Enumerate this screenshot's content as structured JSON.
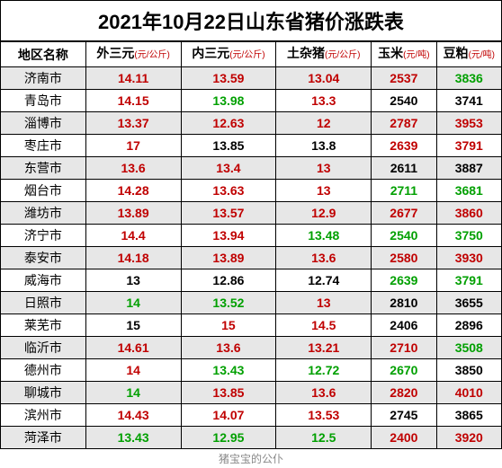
{
  "title": "2021年10月22日山东省猪价涨跌表",
  "footer": "猪宝宝的公仆",
  "colors": {
    "red": "#c00000",
    "green": "#00a000",
    "black": "#000000",
    "odd_row": "#e7e7e7",
    "even_row": "#ffffff"
  },
  "columns": [
    {
      "label": "地区名称",
      "unit": ""
    },
    {
      "label": "外三元",
      "unit": "(元/公斤)"
    },
    {
      "label": "内三元",
      "unit": "(元/公斤)"
    },
    {
      "label": "土杂猪",
      "unit": "(元/公斤)"
    },
    {
      "label": "玉米",
      "unit": "(元/吨)"
    },
    {
      "label": "豆粕",
      "unit": "(元/吨)"
    }
  ],
  "rows": [
    {
      "city": "济南市",
      "cells": [
        {
          "v": "14.11",
          "c": "red"
        },
        {
          "v": "13.59",
          "c": "red"
        },
        {
          "v": "13.04",
          "c": "red"
        },
        {
          "v": "2537",
          "c": "red"
        },
        {
          "v": "3836",
          "c": "green"
        }
      ]
    },
    {
      "city": "青岛市",
      "cells": [
        {
          "v": "14.15",
          "c": "red"
        },
        {
          "v": "13.98",
          "c": "green"
        },
        {
          "v": "13.3",
          "c": "red"
        },
        {
          "v": "2540",
          "c": "black"
        },
        {
          "v": "3741",
          "c": "black"
        }
      ]
    },
    {
      "city": "淄博市",
      "cells": [
        {
          "v": "13.37",
          "c": "red"
        },
        {
          "v": "12.63",
          "c": "red"
        },
        {
          "v": "12",
          "c": "red"
        },
        {
          "v": "2787",
          "c": "red"
        },
        {
          "v": "3953",
          "c": "red"
        }
      ]
    },
    {
      "city": "枣庄市",
      "cells": [
        {
          "v": "17",
          "c": "red"
        },
        {
          "v": "13.85",
          "c": "black"
        },
        {
          "v": "13.8",
          "c": "black"
        },
        {
          "v": "2639",
          "c": "red"
        },
        {
          "v": "3791",
          "c": "red"
        }
      ]
    },
    {
      "city": "东营市",
      "cells": [
        {
          "v": "13.6",
          "c": "red"
        },
        {
          "v": "13.4",
          "c": "red"
        },
        {
          "v": "13",
          "c": "red"
        },
        {
          "v": "2611",
          "c": "black"
        },
        {
          "v": "3887",
          "c": "black"
        }
      ]
    },
    {
      "city": "烟台市",
      "cells": [
        {
          "v": "14.28",
          "c": "red"
        },
        {
          "v": "13.63",
          "c": "red"
        },
        {
          "v": "13",
          "c": "red"
        },
        {
          "v": "2711",
          "c": "green"
        },
        {
          "v": "3681",
          "c": "green"
        }
      ]
    },
    {
      "city": "潍坊市",
      "cells": [
        {
          "v": "13.89",
          "c": "red"
        },
        {
          "v": "13.57",
          "c": "red"
        },
        {
          "v": "12.9",
          "c": "red"
        },
        {
          "v": "2677",
          "c": "red"
        },
        {
          "v": "3860",
          "c": "red"
        }
      ]
    },
    {
      "city": "济宁市",
      "cells": [
        {
          "v": "14.4",
          "c": "red"
        },
        {
          "v": "13.94",
          "c": "red"
        },
        {
          "v": "13.48",
          "c": "green"
        },
        {
          "v": "2540",
          "c": "green"
        },
        {
          "v": "3750",
          "c": "green"
        }
      ]
    },
    {
      "city": "泰安市",
      "cells": [
        {
          "v": "14.18",
          "c": "red"
        },
        {
          "v": "13.89",
          "c": "red"
        },
        {
          "v": "13.6",
          "c": "red"
        },
        {
          "v": "2580",
          "c": "red"
        },
        {
          "v": "3930",
          "c": "red"
        }
      ]
    },
    {
      "city": "威海市",
      "cells": [
        {
          "v": "13",
          "c": "black"
        },
        {
          "v": "12.86",
          "c": "black"
        },
        {
          "v": "12.74",
          "c": "black"
        },
        {
          "v": "2639",
          "c": "green"
        },
        {
          "v": "3791",
          "c": "green"
        }
      ]
    },
    {
      "city": "日照市",
      "cells": [
        {
          "v": "14",
          "c": "green"
        },
        {
          "v": "13.52",
          "c": "green"
        },
        {
          "v": "13",
          "c": "red"
        },
        {
          "v": "2810",
          "c": "black"
        },
        {
          "v": "3655",
          "c": "black"
        }
      ]
    },
    {
      "city": "莱芜市",
      "cells": [
        {
          "v": "15",
          "c": "black"
        },
        {
          "v": "15",
          "c": "red"
        },
        {
          "v": "14.5",
          "c": "red"
        },
        {
          "v": "2406",
          "c": "black"
        },
        {
          "v": "2896",
          "c": "black"
        }
      ]
    },
    {
      "city": "临沂市",
      "cells": [
        {
          "v": "14.61",
          "c": "red"
        },
        {
          "v": "13.6",
          "c": "red"
        },
        {
          "v": "13.21",
          "c": "red"
        },
        {
          "v": "2710",
          "c": "red"
        },
        {
          "v": "3508",
          "c": "green"
        }
      ]
    },
    {
      "city": "德州市",
      "cells": [
        {
          "v": "14",
          "c": "red"
        },
        {
          "v": "13.43",
          "c": "green"
        },
        {
          "v": "12.72",
          "c": "green"
        },
        {
          "v": "2670",
          "c": "green"
        },
        {
          "v": "3850",
          "c": "black"
        }
      ]
    },
    {
      "city": "聊城市",
      "cells": [
        {
          "v": "14",
          "c": "green"
        },
        {
          "v": "13.85",
          "c": "red"
        },
        {
          "v": "13.6",
          "c": "red"
        },
        {
          "v": "2820",
          "c": "red"
        },
        {
          "v": "4010",
          "c": "red"
        }
      ]
    },
    {
      "city": "滨州市",
      "cells": [
        {
          "v": "14.43",
          "c": "red"
        },
        {
          "v": "14.07",
          "c": "red"
        },
        {
          "v": "13.53",
          "c": "red"
        },
        {
          "v": "2745",
          "c": "black"
        },
        {
          "v": "3865",
          "c": "black"
        }
      ]
    },
    {
      "city": "菏泽市",
      "cells": [
        {
          "v": "13.43",
          "c": "green"
        },
        {
          "v": "12.95",
          "c": "green"
        },
        {
          "v": "12.5",
          "c": "green"
        },
        {
          "v": "2400",
          "c": "red"
        },
        {
          "v": "3920",
          "c": "red"
        }
      ]
    }
  ]
}
